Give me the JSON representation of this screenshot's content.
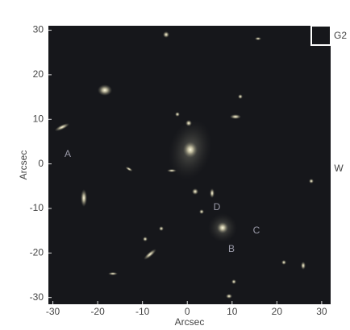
{
  "chart_data": {
    "type": "image",
    "xlabel": "Arcsec",
    "ylabel": "Arcsec",
    "xlim": [
      -31,
      32
    ],
    "ylim": [
      -31.5,
      31
    ],
    "xticks": [
      -30,
      -20,
      -10,
      0,
      10,
      20,
      30
    ],
    "yticks": [
      -30,
      -20,
      -10,
      0,
      10,
      20,
      30
    ],
    "annotations": [
      "A",
      "B",
      "C",
      "D",
      "W",
      "G2"
    ]
  }
}
